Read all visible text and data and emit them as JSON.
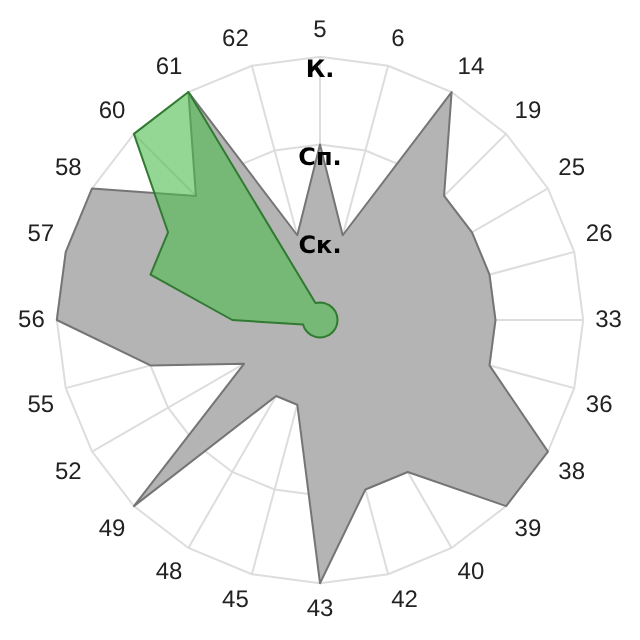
{
  "chart_data": {
    "type": "radar",
    "categories": [
      "5",
      "6",
      "14",
      "19",
      "25",
      "26",
      "33",
      "36",
      "38",
      "39",
      "40",
      "42",
      "43",
      "45",
      "48",
      "49",
      "52",
      "55",
      "56",
      "57",
      "58",
      "60",
      "61",
      "62"
    ],
    "series": [
      {
        "color": "#b4b4b4",
        "values": [
          2,
          1,
          3,
          2,
          2,
          2,
          2,
          2,
          3,
          3,
          2,
          2,
          3,
          1,
          1,
          3,
          1,
          2,
          3,
          3,
          3,
          2,
          3,
          1
        ]
      },
      {
        "color": "#4cbb4c",
        "values": [
          0.2,
          0.2,
          0.2,
          0.2,
          0.2,
          0.2,
          0.2,
          0.2,
          0.2,
          0.2,
          0.2,
          0.2,
          0.2,
          0.2,
          0.2,
          0.2,
          0.2,
          0.2,
          1,
          2,
          2,
          3,
          3,
          0.2
        ]
      }
    ],
    "ylim": [
      0,
      3
    ],
    "yticks": [
      {
        "value": 1,
        "label": "Ск."
      },
      {
        "value": 2,
        "label": "Сп."
      },
      {
        "value": 3,
        "label": "К."
      }
    ],
    "grid": true,
    "legend": false,
    "marker": "none"
  }
}
